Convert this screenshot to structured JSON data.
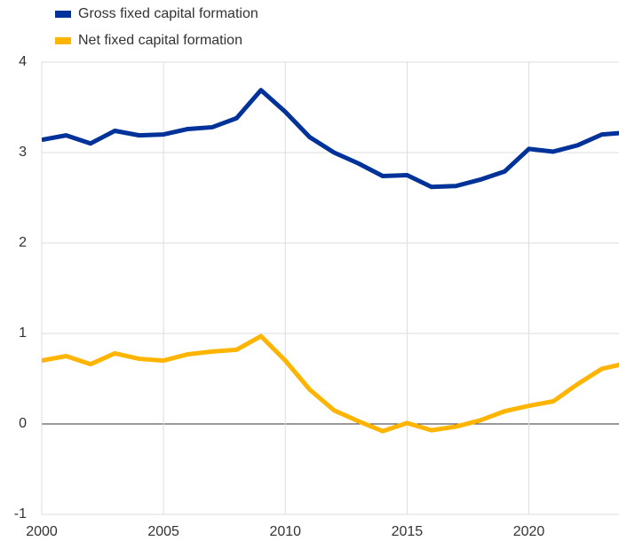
{
  "chart_data": {
    "type": "line",
    "x": [
      2000,
      2001,
      2002,
      2003,
      2004,
      2005,
      2006,
      2007,
      2008,
      2009,
      2010,
      2011,
      2012,
      2013,
      2014,
      2015,
      2016,
      2017,
      2018,
      2019,
      2020,
      2021,
      2022,
      2023,
      2024
    ],
    "series": [
      {
        "name": "Gross fixed capital formation",
        "color": "#003299",
        "values": [
          3.14,
          3.19,
          3.1,
          3.24,
          3.19,
          3.2,
          3.26,
          3.28,
          3.38,
          3.69,
          3.45,
          3.17,
          3.0,
          2.88,
          2.74,
          2.75,
          2.62,
          2.63,
          2.7,
          2.79,
          3.04,
          3.01,
          3.08,
          3.2,
          3.22
        ]
      },
      {
        "name": "Net fixed capital formation",
        "color": "#ffb400",
        "values": [
          0.7,
          0.75,
          0.66,
          0.78,
          0.72,
          0.7,
          0.77,
          0.8,
          0.82,
          0.97,
          0.7,
          0.38,
          0.15,
          0.03,
          -0.08,
          0.01,
          -0.07,
          -0.03,
          0.04,
          0.14,
          0.2,
          0.25,
          0.44,
          0.61,
          0.67
        ]
      }
    ],
    "xlim": [
      2000,
      2023.7
    ],
    "xticks": [
      2000,
      2005,
      2010,
      2015,
      2020
    ],
    "ylim": [
      -1,
      4
    ],
    "yticks": [
      -1,
      0,
      1,
      2,
      3,
      4
    ],
    "grid": true,
    "legend": "top-left"
  }
}
